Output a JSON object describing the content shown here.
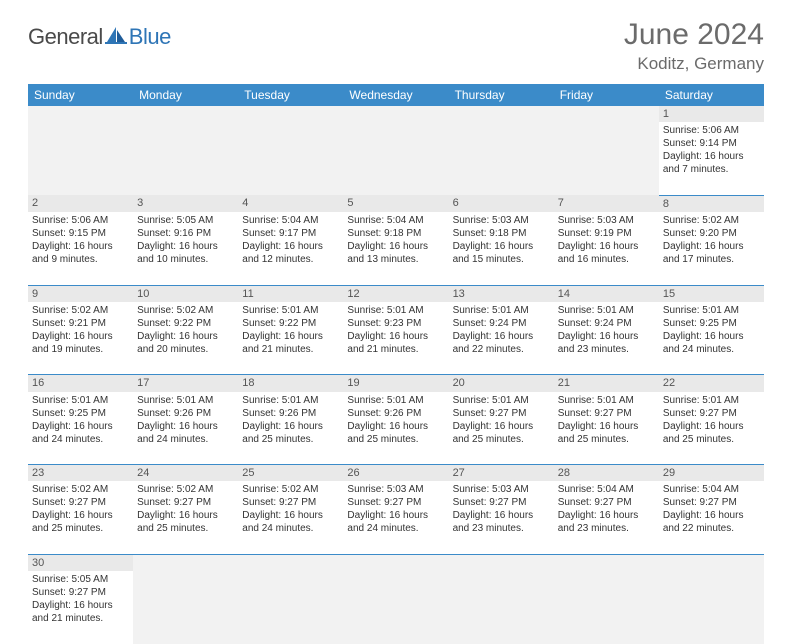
{
  "brand": {
    "part1": "General",
    "part2": "Blue"
  },
  "title": "June 2024",
  "location": "Koditz, Germany",
  "colors": {
    "header_bg": "#3b8bc9",
    "header_text": "#ffffff",
    "daynum_bg": "#e9e9e9",
    "cell_border": "#3b8bc9",
    "brand_blue": "#2e75b6",
    "text_gray": "#6b6b6b"
  },
  "weekdays": [
    "Sunday",
    "Monday",
    "Tuesday",
    "Wednesday",
    "Thursday",
    "Friday",
    "Saturday"
  ],
  "weeks": [
    [
      null,
      null,
      null,
      null,
      null,
      null,
      {
        "n": "1",
        "sr": "Sunrise: 5:06 AM",
        "ss": "Sunset: 9:14 PM",
        "d1": "Daylight: 16 hours",
        "d2": "and 7 minutes."
      }
    ],
    [
      {
        "n": "2",
        "sr": "Sunrise: 5:06 AM",
        "ss": "Sunset: 9:15 PM",
        "d1": "Daylight: 16 hours",
        "d2": "and 9 minutes."
      },
      {
        "n": "3",
        "sr": "Sunrise: 5:05 AM",
        "ss": "Sunset: 9:16 PM",
        "d1": "Daylight: 16 hours",
        "d2": "and 10 minutes."
      },
      {
        "n": "4",
        "sr": "Sunrise: 5:04 AM",
        "ss": "Sunset: 9:17 PM",
        "d1": "Daylight: 16 hours",
        "d2": "and 12 minutes."
      },
      {
        "n": "5",
        "sr": "Sunrise: 5:04 AM",
        "ss": "Sunset: 9:18 PM",
        "d1": "Daylight: 16 hours",
        "d2": "and 13 minutes."
      },
      {
        "n": "6",
        "sr": "Sunrise: 5:03 AM",
        "ss": "Sunset: 9:18 PM",
        "d1": "Daylight: 16 hours",
        "d2": "and 15 minutes."
      },
      {
        "n": "7",
        "sr": "Sunrise: 5:03 AM",
        "ss": "Sunset: 9:19 PM",
        "d1": "Daylight: 16 hours",
        "d2": "and 16 minutes."
      },
      {
        "n": "8",
        "sr": "Sunrise: 5:02 AM",
        "ss": "Sunset: 9:20 PM",
        "d1": "Daylight: 16 hours",
        "d2": "and 17 minutes."
      }
    ],
    [
      {
        "n": "9",
        "sr": "Sunrise: 5:02 AM",
        "ss": "Sunset: 9:21 PM",
        "d1": "Daylight: 16 hours",
        "d2": "and 19 minutes."
      },
      {
        "n": "10",
        "sr": "Sunrise: 5:02 AM",
        "ss": "Sunset: 9:22 PM",
        "d1": "Daylight: 16 hours",
        "d2": "and 20 minutes."
      },
      {
        "n": "11",
        "sr": "Sunrise: 5:01 AM",
        "ss": "Sunset: 9:22 PM",
        "d1": "Daylight: 16 hours",
        "d2": "and 21 minutes."
      },
      {
        "n": "12",
        "sr": "Sunrise: 5:01 AM",
        "ss": "Sunset: 9:23 PM",
        "d1": "Daylight: 16 hours",
        "d2": "and 21 minutes."
      },
      {
        "n": "13",
        "sr": "Sunrise: 5:01 AM",
        "ss": "Sunset: 9:24 PM",
        "d1": "Daylight: 16 hours",
        "d2": "and 22 minutes."
      },
      {
        "n": "14",
        "sr": "Sunrise: 5:01 AM",
        "ss": "Sunset: 9:24 PM",
        "d1": "Daylight: 16 hours",
        "d2": "and 23 minutes."
      },
      {
        "n": "15",
        "sr": "Sunrise: 5:01 AM",
        "ss": "Sunset: 9:25 PM",
        "d1": "Daylight: 16 hours",
        "d2": "and 24 minutes."
      }
    ],
    [
      {
        "n": "16",
        "sr": "Sunrise: 5:01 AM",
        "ss": "Sunset: 9:25 PM",
        "d1": "Daylight: 16 hours",
        "d2": "and 24 minutes."
      },
      {
        "n": "17",
        "sr": "Sunrise: 5:01 AM",
        "ss": "Sunset: 9:26 PM",
        "d1": "Daylight: 16 hours",
        "d2": "and 24 minutes."
      },
      {
        "n": "18",
        "sr": "Sunrise: 5:01 AM",
        "ss": "Sunset: 9:26 PM",
        "d1": "Daylight: 16 hours",
        "d2": "and 25 minutes."
      },
      {
        "n": "19",
        "sr": "Sunrise: 5:01 AM",
        "ss": "Sunset: 9:26 PM",
        "d1": "Daylight: 16 hours",
        "d2": "and 25 minutes."
      },
      {
        "n": "20",
        "sr": "Sunrise: 5:01 AM",
        "ss": "Sunset: 9:27 PM",
        "d1": "Daylight: 16 hours",
        "d2": "and 25 minutes."
      },
      {
        "n": "21",
        "sr": "Sunrise: 5:01 AM",
        "ss": "Sunset: 9:27 PM",
        "d1": "Daylight: 16 hours",
        "d2": "and 25 minutes."
      },
      {
        "n": "22",
        "sr": "Sunrise: 5:01 AM",
        "ss": "Sunset: 9:27 PM",
        "d1": "Daylight: 16 hours",
        "d2": "and 25 minutes."
      }
    ],
    [
      {
        "n": "23",
        "sr": "Sunrise: 5:02 AM",
        "ss": "Sunset: 9:27 PM",
        "d1": "Daylight: 16 hours",
        "d2": "and 25 minutes."
      },
      {
        "n": "24",
        "sr": "Sunrise: 5:02 AM",
        "ss": "Sunset: 9:27 PM",
        "d1": "Daylight: 16 hours",
        "d2": "and 25 minutes."
      },
      {
        "n": "25",
        "sr": "Sunrise: 5:02 AM",
        "ss": "Sunset: 9:27 PM",
        "d1": "Daylight: 16 hours",
        "d2": "and 24 minutes."
      },
      {
        "n": "26",
        "sr": "Sunrise: 5:03 AM",
        "ss": "Sunset: 9:27 PM",
        "d1": "Daylight: 16 hours",
        "d2": "and 24 minutes."
      },
      {
        "n": "27",
        "sr": "Sunrise: 5:03 AM",
        "ss": "Sunset: 9:27 PM",
        "d1": "Daylight: 16 hours",
        "d2": "and 23 minutes."
      },
      {
        "n": "28",
        "sr": "Sunrise: 5:04 AM",
        "ss": "Sunset: 9:27 PM",
        "d1": "Daylight: 16 hours",
        "d2": "and 23 minutes."
      },
      {
        "n": "29",
        "sr": "Sunrise: 5:04 AM",
        "ss": "Sunset: 9:27 PM",
        "d1": "Daylight: 16 hours",
        "d2": "and 22 minutes."
      }
    ],
    [
      {
        "n": "30",
        "sr": "Sunrise: 5:05 AM",
        "ss": "Sunset: 9:27 PM",
        "d1": "Daylight: 16 hours",
        "d2": "and 21 minutes."
      },
      null,
      null,
      null,
      null,
      null,
      null
    ]
  ]
}
